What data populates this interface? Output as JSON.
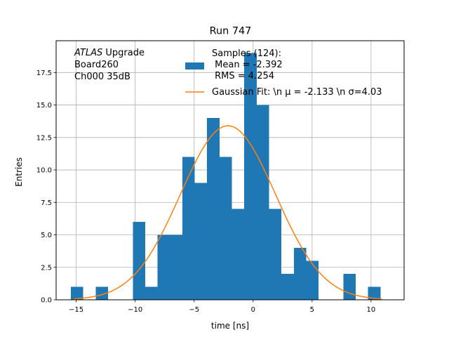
{
  "chart_data": {
    "type": "bar",
    "title": "Run 747",
    "xlabel": "time [ns]",
    "ylabel": "Entries",
    "xlim": [
      -16.7,
      12.8
    ],
    "ylim": [
      0,
      19.95
    ],
    "grid": true,
    "x_ticks": [
      -15,
      -10,
      -5,
      0,
      5,
      10
    ],
    "x_tick_labels": [
      "−15",
      "−10",
      "−5",
      "0",
      "5",
      "10"
    ],
    "y_ticks": [
      0.0,
      2.5,
      5.0,
      7.5,
      10.0,
      12.5,
      15.0,
      17.5
    ],
    "y_tick_labels": [
      "0.0",
      "2.5",
      "5.0",
      "7.5",
      "10.0",
      "12.5",
      "15.0",
      "17.5"
    ],
    "histogram": {
      "name": "Samples (124)",
      "color": "#1f77b4",
      "bin_start": -15.45,
      "bin_width": 1.05,
      "counts": [
        1,
        0,
        1,
        0,
        0,
        6,
        1,
        5,
        5,
        11,
        9,
        14,
        11,
        7,
        19,
        15,
        7,
        2,
        4,
        3,
        0,
        0,
        2,
        0,
        1
      ]
    },
    "fit": {
      "name": "Gaussian Fit",
      "color": "#ff7f0e",
      "mu": -2.133,
      "sigma": 4.03,
      "amplitude": 13.4,
      "x_range": [
        -15.2,
        10.9
      ]
    },
    "annotation": {
      "lines": [
        {
          "italic": "ATLAS",
          "rest": " Upgrade"
        },
        {
          "italic": "",
          "rest": " Board260"
        },
        {
          "italic": "",
          "rest": " Ch000 35dB"
        }
      ]
    },
    "legend": {
      "placement": "top-right",
      "entries": [
        {
          "label_lines": [
            "Samples (124):",
            " Mean = -2.392",
            " RMS = 4.254"
          ],
          "kind": "patch",
          "color": "#1f77b4"
        },
        {
          "label_lines": [
            "Gaussian Fit: \\n μ = -2.133 \\n σ=4.03"
          ],
          "kind": "line",
          "color": "#ff7f0e"
        }
      ]
    }
  }
}
